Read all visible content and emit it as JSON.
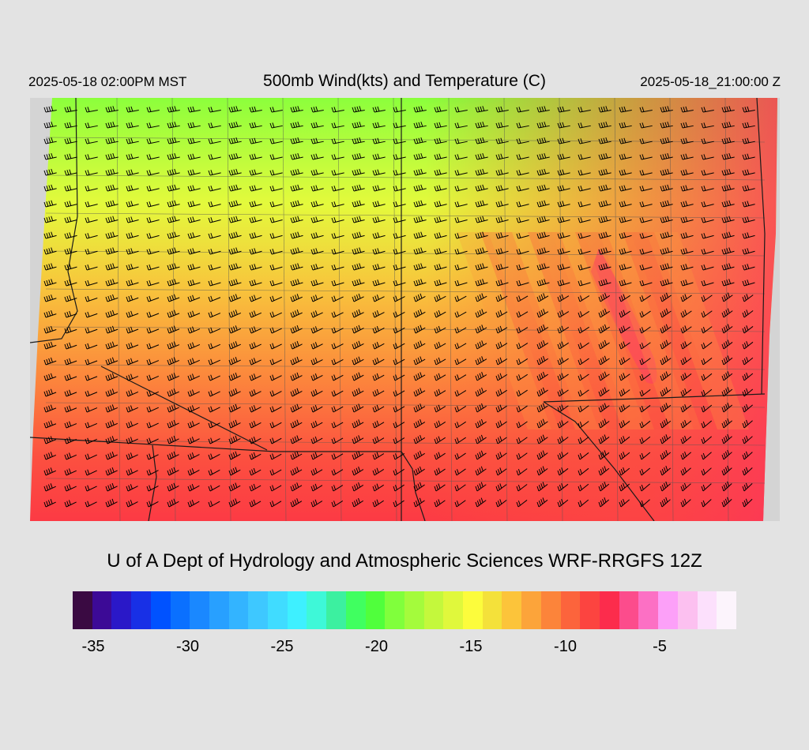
{
  "header": {
    "local_time": "2025-05-18 02:00PM MST",
    "title": "500mb Wind(kts) and Temperature (C)",
    "valid_time": "2025-05-18_21:00:00 Z"
  },
  "footer": {
    "credit": "U of A Dept of Hydrology and Atmospheric Sciences WRF-RRGFS 12Z"
  },
  "colorbar": {
    "colors": [
      "#3a0a42",
      "#3c0a96",
      "#2a18c8",
      "#1830e6",
      "#0052ff",
      "#0a70ff",
      "#1a88ff",
      "#28a0ff",
      "#33b4ff",
      "#3ec8ff",
      "#40dcff",
      "#3ef0ff",
      "#3ef8d8",
      "#3cf0a0",
      "#40ff60",
      "#50ff3c",
      "#80ff3c",
      "#a4fb3c",
      "#c4f83c",
      "#e0f83c",
      "#fcfc3c",
      "#f4e13a",
      "#fcc43a",
      "#fca43a",
      "#fc843a",
      "#fc643c",
      "#fc4440",
      "#fc2c4c",
      "#fc4c8c",
      "#fc70c4",
      "#fca0f8",
      "#fcc0f0",
      "#fce0fc",
      "#fcf4fc"
    ],
    "ticks": [
      {
        "label": "-35",
        "pos": 0.0
      },
      {
        "label": "-30",
        "pos": 1.0
      },
      {
        "label": "-25",
        "pos": 2.0
      },
      {
        "label": "-20",
        "pos": 3.0
      },
      {
        "label": "-15",
        "pos": 4.0
      },
      {
        "label": "-10",
        "pos": 5.0
      },
      {
        "label": "-5",
        "pos": 6.0
      }
    ]
  },
  "map": {
    "field": "temperature_c",
    "no_data_color": "#d4d4d4",
    "barb_color": "#000000",
    "boundary_color": "#1a1a1a",
    "county_color": "#555555"
  }
}
